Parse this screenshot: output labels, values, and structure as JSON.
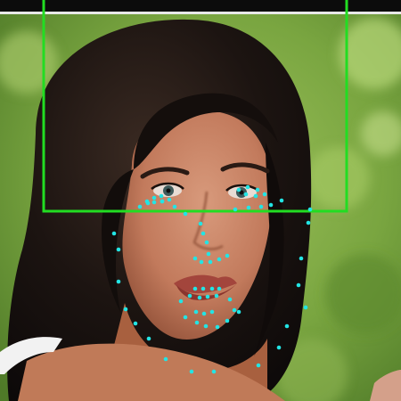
{
  "colors": {
    "bbox": "#22dd22",
    "landmark": "#22e5e5",
    "top_bar": "#0c0c0c",
    "foliage": "#6f9a3c"
  },
  "landmark_count": 68,
  "bbox_visible": true
}
